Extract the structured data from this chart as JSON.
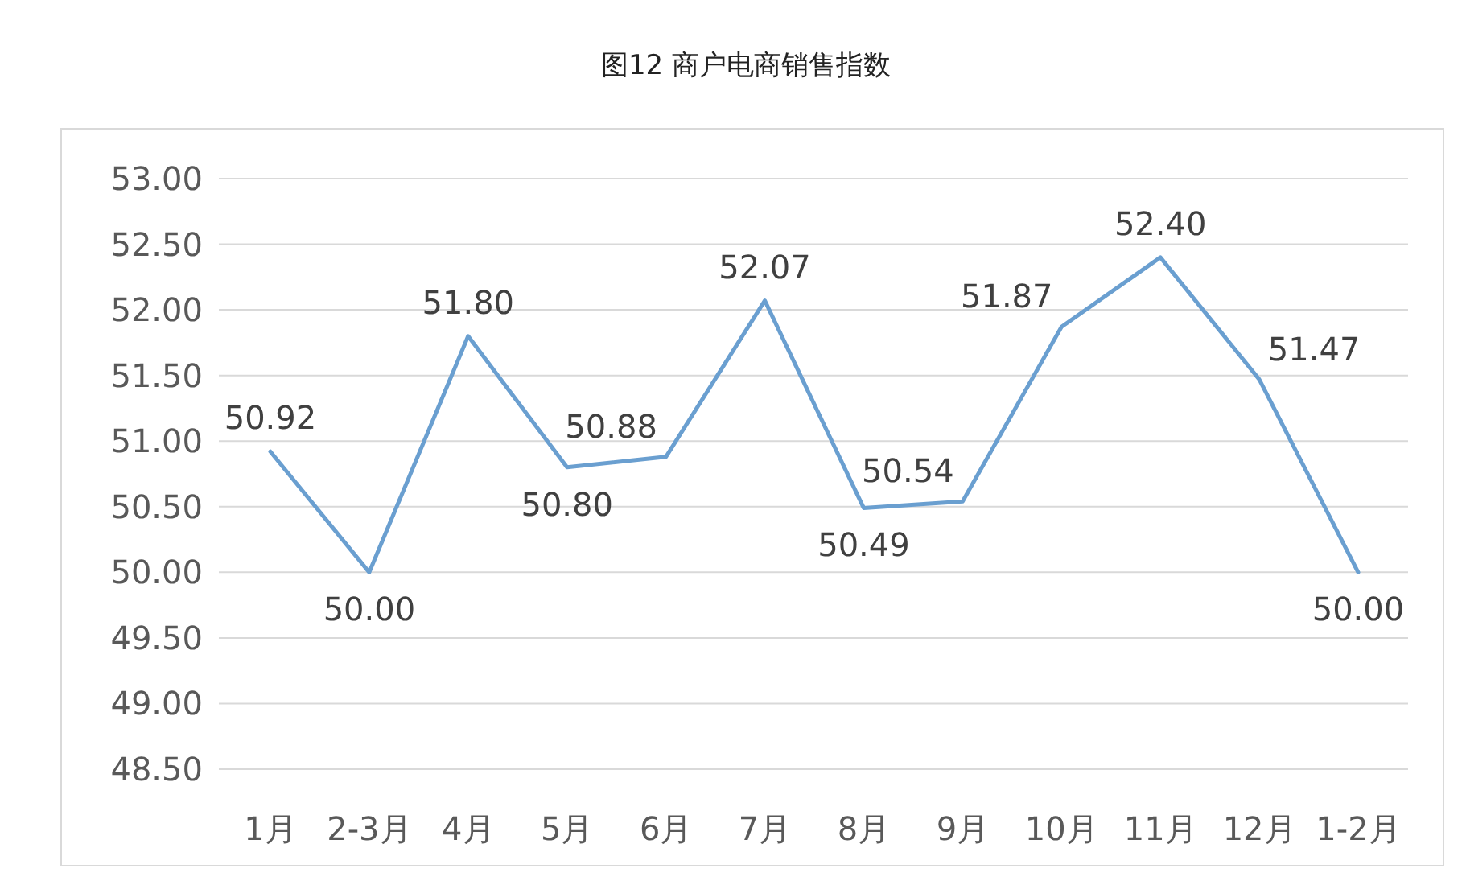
{
  "chart_data": {
    "type": "line",
    "title": "图12 商户电商销售指数",
    "categories": [
      "1月",
      "2-3月",
      "4月",
      "5月",
      "6月",
      "7月",
      "8月",
      "9月",
      "10月",
      "11月",
      "12月",
      "1-2月"
    ],
    "series": [
      {
        "color": "#6a9fd0",
        "values": [
          50.92,
          50.0,
          51.8,
          50.8,
          50.88,
          52.07,
          50.49,
          50.54,
          51.87,
          52.4,
          51.47,
          50.0
        ],
        "value_labels": [
          "50.92",
          "50.00",
          "51.80",
          "50.80",
          "50.88",
          "52.07",
          "50.49",
          "50.54",
          "51.87",
          "52.40",
          "51.47",
          "50.00"
        ]
      }
    ],
    "ylim": [
      48.5,
      53
    ],
    "yticks": [
      {
        "value": 48.5,
        "label": "48.50"
      },
      {
        "value": 49,
        "label": "49.00"
      },
      {
        "value": 49.5,
        "label": "49.50"
      },
      {
        "value": 50,
        "label": "50.00"
      },
      {
        "value": 50.5,
        "label": "50.50"
      },
      {
        "value": 51,
        "label": "51.00"
      },
      {
        "value": 51.5,
        "label": "51.50"
      },
      {
        "value": 52,
        "label": "52.00"
      },
      {
        "value": 52.5,
        "label": "52.50"
      },
      {
        "value": 53,
        "label": "53.00"
      }
    ],
    "grid": "y",
    "marker": "none",
    "line_style": "solid"
  }
}
